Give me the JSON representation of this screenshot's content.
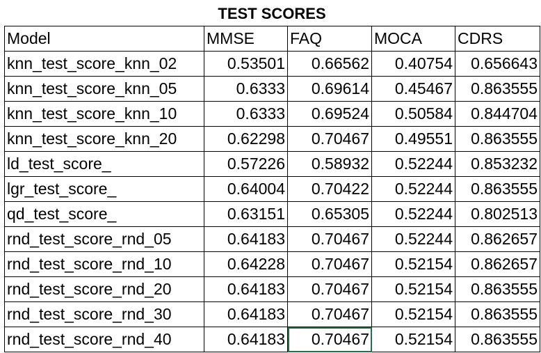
{
  "sheet": {
    "title": "TEST SCORES",
    "headers": [
      "Model",
      "MMSE",
      "FAQ",
      "MOCA",
      "CDRS"
    ],
    "rows": [
      [
        "knn_test_score_knn_02",
        "0.53501",
        "0.66562",
        "0.40754",
        "0.656643"
      ],
      [
        "knn_test_score_knn_05",
        "0.6333",
        "0.69614",
        "0.45467",
        "0.863555"
      ],
      [
        "knn_test_score_knn_10",
        "0.6333",
        "0.69524",
        "0.50584",
        "0.844704"
      ],
      [
        "knn_test_score_knn_20",
        "0.62298",
        "0.70467",
        "0.49551",
        "0.863555"
      ],
      [
        "ld_test_score_",
        "0.57226",
        "0.58932",
        "0.52244",
        "0.853232"
      ],
      [
        "lgr_test_score_",
        "0.64004",
        "0.70422",
        "0.52244",
        "0.863555"
      ],
      [
        "qd_test_score_",
        "0.63151",
        "0.65305",
        "0.52244",
        "0.802513"
      ],
      [
        "rnd_test_score_rnd_05",
        "0.64183",
        "0.70467",
        "0.52244",
        "0.862657"
      ],
      [
        "rnd_test_score_rnd_10",
        "0.64228",
        "0.70467",
        "0.52154",
        "0.862657"
      ],
      [
        "rnd_test_score_rnd_20",
        "0.64183",
        "0.70467",
        "0.52154",
        "0.863555"
      ],
      [
        "rnd_test_score_rnd_30",
        "0.64183",
        "0.70467",
        "0.52154",
        "0.863555"
      ],
      [
        "rnd_test_score_rnd_40",
        "0.64183",
        "0.70467",
        "0.52154",
        "0.863555"
      ]
    ],
    "selected_cell": {
      "row": 11,
      "col": 2
    },
    "selection_color": "#217346"
  }
}
